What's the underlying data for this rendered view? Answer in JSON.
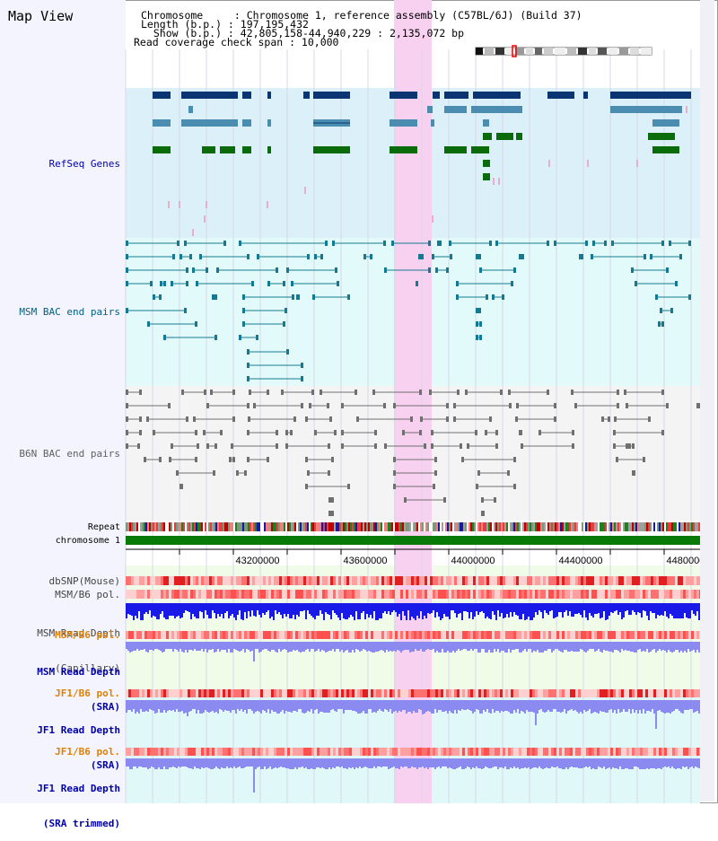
{
  "header": {
    "title": "Map View",
    "chromosome_line": "Chromosome     : Chromosome 1, reference assembly (C57BL/6J) (Build 37)",
    "length_line": "Length (b.p.) : 197,195,432",
    "show_line": "  Show (b.p.) : 42,805,158-44,940,229 : 2,135,072 bp",
    "coverage_line": "Read coverage check span : 10,000"
  },
  "tracks": {
    "refseq": "RefSeq Genes",
    "msm_bac": "MSM BAC end pairs",
    "b6n_bac": "B6N BAC end pairs",
    "repeat": "Repeat",
    "chromosome": "chromosome 1",
    "dbsnp": "dbSNP(Mouse)",
    "msm_b6_pol": "MSM/B6 pol.",
    "msm_depth_cap_1": "MSM Read Depth",
    "msm_depth_cap_2": "(Capillary)",
    "msm_b6_pol_2": "MSM/B6 pol.",
    "msm_depth_sra_1": "MSM Read Depth",
    "msm_depth_sra_2": "(SRA)",
    "jf1_b6_pol": "JF1/B6 pol.",
    "jf1_depth_sra_1": "JF1 Read Depth",
    "jf1_depth_sra_2": "(SRA)",
    "jf1_b6_pol_2": "JF1/B6 pol.",
    "jf1_depth_trim_1": "JF1 Read Depth",
    "jf1_depth_trim_2": "(SRA trimmed)"
  },
  "axis": {
    "ticks": [
      "43200000",
      "43600000",
      "44000000",
      "44400000",
      "44800000"
    ]
  },
  "colors": {
    "refseq_bg": "#dcf0fa",
    "msm_bg": "#e2faf9",
    "b6n_bg": "#f4f4f4",
    "highlight": "#f8d0f0",
    "gene_dark": "#0a3572",
    "gene_mid": "#4a8db0",
    "gene_green": "#0a6b0a",
    "msm_line": "#157a91",
    "b6n_line": "#707070",
    "chrom_green": "#087a08",
    "depth_blue": "#1a1ae8",
    "depth_light": "#8a8af0",
    "label_blue": "#0000aa",
    "label_teal": "#006080",
    "label_orange": "#e08000"
  }
}
